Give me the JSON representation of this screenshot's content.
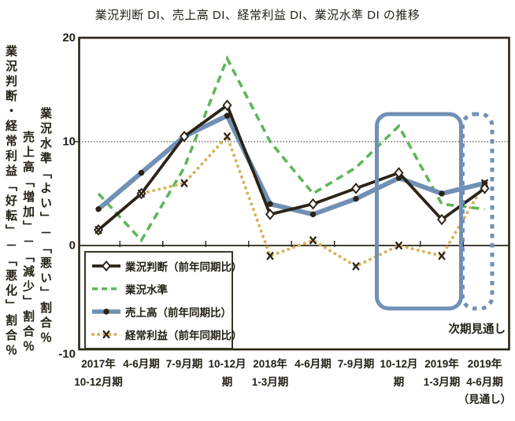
{
  "title": "業況判断 DI、売上高 DI、経常利益 DI、業況水準 DI の推移",
  "left_labels": {
    "col1": "業況判断・経常利益「好転」－「悪化」割合％",
    "col2": "売上高「増加」－「減少」割合％",
    "col3": "業況水準「よい」－「悪い」割合％"
  },
  "annotation": "次期見通し",
  "colors": {
    "dark": "#2b2416",
    "green": "#5eb657",
    "blue": "#7090b5",
    "tan": "#d7b35c",
    "highlight_box": "#7090b5"
  },
  "chart_data": {
    "type": "line",
    "title": "業況判断DI、売上高DI、経常利益DI、業況水準DIの推移",
    "ylim": [
      -10,
      20
    ],
    "yticks": [
      20,
      10,
      0,
      -10
    ],
    "dotted_gridline_at": 10,
    "zero_axis": true,
    "legend_position": "bottom-left",
    "categories": [
      [
        "2017年",
        "10-12月期"
      ],
      [
        "4-6月期"
      ],
      [
        "7-9月期"
      ],
      [
        "10-12月",
        "期"
      ],
      [
        "2018年",
        "1-3月期"
      ],
      [
        "4-6月期"
      ],
      [
        "7-9月期"
      ],
      [
        "10-12月",
        "期"
      ],
      [
        "2019年",
        "1-3月期"
      ],
      [
        "2019年",
        "4-6月期",
        "（見通し）"
      ]
    ],
    "series": [
      {
        "name": "業況水準",
        "line": "dashed",
        "marker": "none",
        "color_key": "green",
        "values": [
          5.0,
          0.5,
          7.5,
          18.0,
          10.0,
          5.0,
          7.5,
          11.5,
          4.0,
          3.5
        ]
      },
      {
        "name": "経常利益（前年同期比）",
        "line": "dotted",
        "marker": "x",
        "color_key": "tan",
        "values": [
          1.5,
          5.0,
          6.0,
          10.5,
          -1.0,
          0.5,
          -2.0,
          0.0,
          -1.0,
          6.0
        ]
      },
      {
        "name": "売上高（前年同期比）",
        "line": "thick-solid",
        "marker": "filled-circle",
        "color_key": "blue",
        "values": [
          3.5,
          7.0,
          10.5,
          12.5,
          4.0,
          3.0,
          4.5,
          6.5,
          5.0,
          6.0
        ]
      },
      {
        "name": "業況判断（前年同期比）",
        "line": "solid",
        "marker": "open-diamond",
        "color_key": "dark",
        "values": [
          1.5,
          5.0,
          10.5,
          13.5,
          3.0,
          4.0,
          5.5,
          7.0,
          2.5,
          5.5
        ]
      }
    ],
    "legend_order": [
      "業況判断（前年同期比）",
      "業況水準",
      "売上高（前年同期比）",
      "経常利益（前年同期比）"
    ],
    "highlights": [
      {
        "style": "solid",
        "from_index": 7,
        "to_index": 8
      },
      {
        "style": "dotted",
        "from_index": 9,
        "to_index": 9
      }
    ]
  }
}
